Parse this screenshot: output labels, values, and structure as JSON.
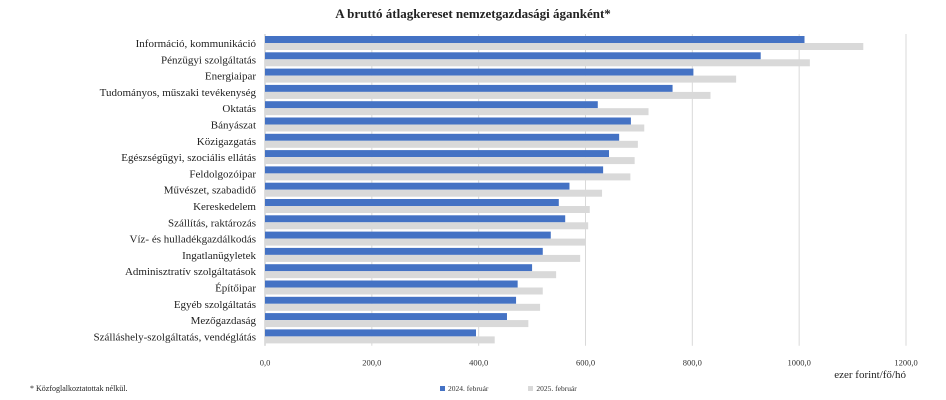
{
  "chart_data": {
    "type": "bar",
    "orientation": "horizontal",
    "title": "A bruttó átlagkereset nemzetgazdasági áganként*",
    "unit_label": "ezer forint/fő/hó",
    "footnote": "* Közfoglalkoztatottak nélkül.",
    "xlim": [
      0,
      1200
    ],
    "ticks": [
      "0,0",
      "200,0",
      "400,0",
      "600,0",
      "800,0",
      "1000,0",
      "1200,0"
    ],
    "tick_values": [
      0,
      200,
      400,
      600,
      800,
      1000,
      1200
    ],
    "grid": true,
    "legend_position": "bottom",
    "categories": [
      "Információ, kommunikáció",
      "Pénzügyi szolgáltatás",
      "Energiaipar",
      "Tudományos, műszaki tevékenység",
      "Oktatás",
      "Bányászat",
      "Közigazgatás",
      "Egészségügyi, szociális ellátás",
      "Feldolgozóipar",
      "Művészet, szabadidő",
      "Kereskedelem",
      "Szállítás, raktározás",
      "Víz- és hulladékgazdálkodás",
      "Ingatlanügyletek",
      "Adminisztratív szolgáltatások",
      "Építőipar",
      "Egyéb szolgáltatás",
      "Mezőgazdaság",
      "Szálláshely-szolgáltatás, vendéglátás"
    ],
    "series": [
      {
        "name": "2024. február",
        "color": "#4472c4",
        "values": [
          1010,
          928,
          802,
          763,
          623,
          685,
          663,
          644,
          633,
          570,
          550,
          562,
          535,
          520,
          500,
          473,
          470,
          453,
          395
        ]
      },
      {
        "name": "2025. február",
        "color": "#d9d9d9",
        "values": [
          1120,
          1020,
          882,
          834,
          718,
          710,
          698,
          692,
          684,
          631,
          608,
          605,
          600,
          590,
          545,
          520,
          515,
          493,
          430
        ]
      }
    ]
  }
}
